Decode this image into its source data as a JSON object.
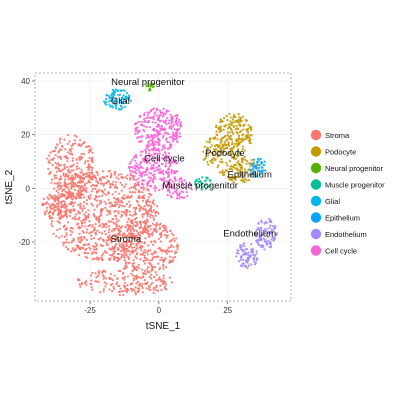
{
  "chart_data": {
    "type": "scatter",
    "title": "",
    "xlabel": "tSNE_1",
    "ylabel": "tSNE_2",
    "xlim": [
      -45,
      48
    ],
    "ylim": [
      -42,
      43
    ],
    "xticks": [
      -25,
      0,
      25
    ],
    "yticks": [
      -20,
      0,
      20,
      40
    ],
    "xtick_labels": [
      "-25",
      "0",
      "25"
    ],
    "ytick_labels": [
      "-20",
      "0",
      "20",
      "40"
    ],
    "grid": true,
    "legend_position": "right",
    "series": [
      {
        "name": "Stroma",
        "color": "#F8766D",
        "clusters": [
          {
            "cx": -20,
            "cy": -10,
            "rx": 20,
            "ry": 17,
            "n": 900
          },
          {
            "cx": -32,
            "cy": 8,
            "rx": 9,
            "ry": 12,
            "n": 250
          },
          {
            "cx": -5,
            "cy": -22,
            "rx": 12,
            "ry": 10,
            "n": 280
          },
          {
            "cx": -12,
            "cy": -35,
            "rx": 18,
            "ry": 5,
            "n": 180
          },
          {
            "cx": -38,
            "cy": -7,
            "rx": 5,
            "ry": 5,
            "n": 70
          }
        ],
        "label": "Stroma",
        "label_pos": [
          -12,
          -20
        ]
      },
      {
        "name": "Podocyte",
        "color": "#C49A00",
        "clusters": [
          {
            "cx": 27,
            "cy": 20,
            "rx": 7,
            "ry": 8,
            "n": 210
          },
          {
            "cx": 29,
            "cy": 7,
            "rx": 7,
            "ry": 5,
            "n": 110
          },
          {
            "cx": 20,
            "cy": 13,
            "rx": 4,
            "ry": 6,
            "n": 60
          }
        ],
        "label": "Podocyte",
        "label_pos": [
          24,
          12
        ]
      },
      {
        "name": "Neural progenitor",
        "color": "#53B400",
        "clusters": [
          {
            "cx": -3,
            "cy": 38,
            "rx": 1.6,
            "ry": 1.6,
            "n": 18
          }
        ],
        "label": "Neural progenitor",
        "label_pos": [
          -4,
          38.5
        ]
      },
      {
        "name": "Muscle progenitor",
        "color": "#00C094",
        "clusters": [
          {
            "cx": 16,
            "cy": 2,
            "rx": 3,
            "ry": 2.5,
            "n": 30
          }
        ],
        "label": "Muscle progenitor",
        "label_pos": [
          15,
          0
        ]
      },
      {
        "name": "Glial",
        "color": "#00B6EB",
        "clusters": [
          {
            "cx": -15,
            "cy": 33,
            "rx": 5,
            "ry": 4,
            "n": 80
          }
        ],
        "label": "Glial",
        "label_pos": [
          -14,
          31.5
        ]
      },
      {
        "name": "Epithelium",
        "color": "#06A4FF",
        "clusters": [
          {
            "cx": 36,
            "cy": 8,
            "rx": 3,
            "ry": 4,
            "n": 45
          }
        ],
        "label": "Epithelium",
        "label_pos": [
          33,
          4
        ]
      },
      {
        "name": "Endothelium",
        "color": "#A58AFF",
        "clusters": [
          {
            "cx": 39,
            "cy": -17,
            "rx": 4,
            "ry": 6,
            "n": 90
          },
          {
            "cx": 32,
            "cy": -25,
            "rx": 4,
            "ry": 5,
            "n": 80
          }
        ],
        "label": "Endothelium",
        "label_pos": [
          33,
          -18
        ]
      },
      {
        "name": "Cell cycle",
        "color": "#FB61D7",
        "clusters": [
          {
            "cx": 0,
            "cy": 22,
            "rx": 9,
            "ry": 8,
            "n": 260
          },
          {
            "cx": -2,
            "cy": 7,
            "rx": 9,
            "ry": 8,
            "n": 230
          },
          {
            "cx": 7,
            "cy": 0,
            "rx": 5,
            "ry": 4,
            "n": 60
          }
        ],
        "label": "Cell cycle",
        "label_pos": [
          2,
          10
        ]
      }
    ]
  }
}
